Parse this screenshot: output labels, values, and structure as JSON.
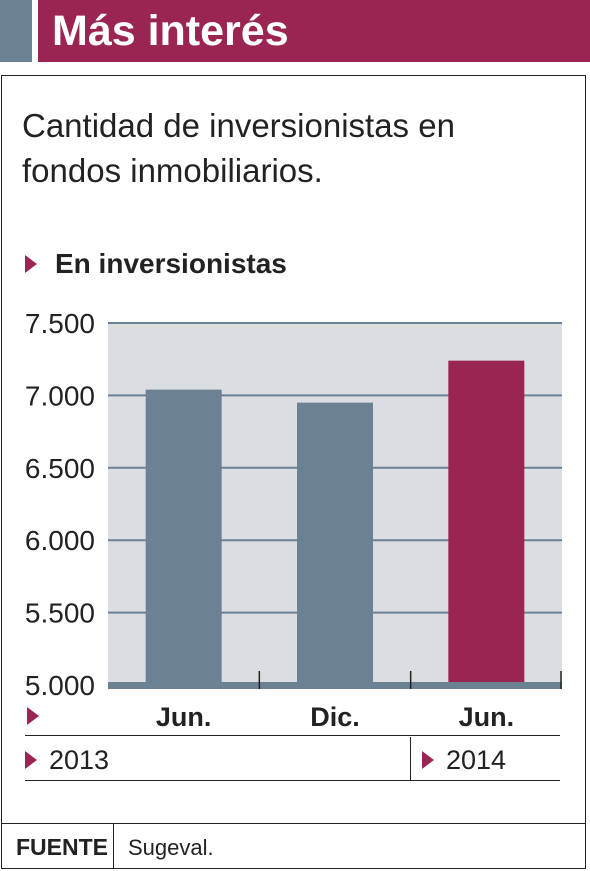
{
  "header": {
    "title": "Más interés"
  },
  "subtitle": "Cantidad de inversionistas en fondos inmobiliarios.",
  "colors": {
    "accent": "#9b2552",
    "bar": "#6b8194",
    "plot_bg": "#dcdde1",
    "grid": "#6b8194"
  },
  "chart_data": {
    "type": "bar",
    "unit_label": "En inversionistas",
    "categories": [
      "Jun.",
      "Dic.",
      "Jun."
    ],
    "values": [
      7040,
      6950,
      7240
    ],
    "highlight_index": 2,
    "year_labels": [
      "2013",
      "2014"
    ],
    "ylim": [
      5000,
      7500
    ],
    "yticks": [
      5000,
      5500,
      6000,
      6500,
      7000,
      7500
    ],
    "ytick_labels": [
      "5.000",
      "5.500",
      "6.000",
      "6.500",
      "7.000",
      "7.500"
    ],
    "grid": true,
    "title": "",
    "xlabel": "",
    "ylabel": ""
  },
  "source": {
    "label": "FUENTE",
    "value": "Sugeval."
  }
}
